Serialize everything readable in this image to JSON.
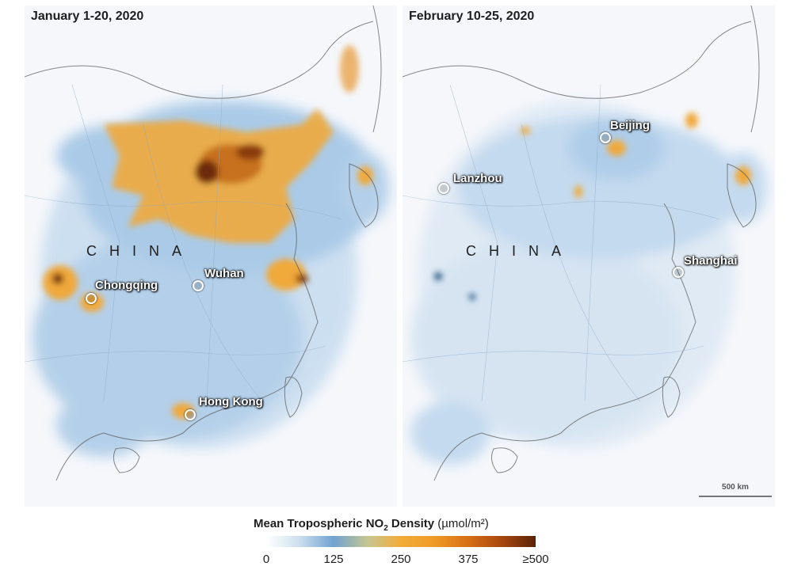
{
  "panels": [
    {
      "title": "January 1-20, 2020",
      "country_label": "CHINA",
      "cities": [
        "Chongqing",
        "Wuhan",
        "Hong Kong"
      ]
    },
    {
      "title": "February 10-25, 2020",
      "country_label": "CHINA",
      "cities": [
        "Beijing",
        "Lanzhou",
        "Shanghai"
      ]
    }
  ],
  "scale_bar": {
    "label": "500 km"
  },
  "legend": {
    "title_main": "Mean Tropospheric NO",
    "title_sub": "2",
    "title_rest": " Density",
    "units": "(µmol/m²)",
    "ticks": [
      "0",
      "125",
      "250",
      "375",
      "≥500"
    ],
    "colors": [
      "#ffffff",
      "#6fa3d1",
      "#f2ac38",
      "#d86f17",
      "#5a2306"
    ]
  }
}
